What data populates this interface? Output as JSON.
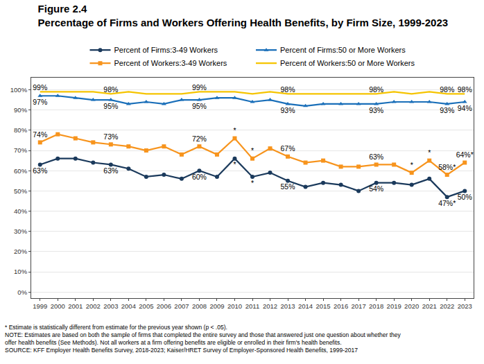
{
  "chart_data": {
    "type": "line",
    "title": "Figure 2.4",
    "subtitle": "Percentage of Firms and Workers Offering Health Benefits, by Firm Size, 1999-2023",
    "notes": [
      "* Estimate is statistically different from estimate for the previous year shown (p < .05).",
      "NOTE: Estimates are based on both the sample of firms that completed the entire survey and those that answered just one question about whether they",
      "offer health benefits (See Methods). Not all workers at a firm offering benefits are eligible or enrolled in their firm's health benefits.",
      "SOURCE: KFF Employer Health Benefits Survey, 2018-2023; Kaiser/HRET Survey of Employer-Sponsored Health Benefits, 1999-2017"
    ],
    "categories": [
      "1999",
      "2000",
      "2001",
      "2002",
      "2003",
      "2004",
      "2005",
      "2006",
      "2007",
      "2008",
      "2009",
      "2010",
      "2011",
      "2012",
      "2013",
      "2014",
      "2015",
      "2016",
      "2017",
      "2018",
      "2019",
      "2020",
      "2021",
      "2022",
      "2023"
    ],
    "ylim": [
      -3,
      106
    ],
    "yticks": [
      {
        "value": 0,
        "label": "0%"
      },
      {
        "value": 10,
        "label": "10%"
      },
      {
        "value": 20,
        "label": "20%"
      },
      {
        "value": 30,
        "label": "30%"
      },
      {
        "value": 40,
        "label": "40%"
      },
      {
        "value": 50,
        "label": "50%"
      },
      {
        "value": 60,
        "label": "60%"
      },
      {
        "value": 70,
        "label": "70%"
      },
      {
        "value": 80,
        "label": "80%"
      },
      {
        "value": 90,
        "label": "90%"
      },
      {
        "value": 100,
        "label": "100%"
      }
    ],
    "grid": true,
    "legend": "top",
    "data_labels": true,
    "series": [
      {
        "name": "Percent of Firms:3-49 Workers",
        "color": "#1b3a5c",
        "marker": "circle",
        "values": [
          63,
          66,
          66,
          64,
          63,
          61,
          57,
          58,
          56,
          60,
          57,
          66,
          57,
          59,
          55,
          52,
          54,
          53,
          50,
          54,
          54,
          53,
          56,
          47,
          50
        ],
        "value_labels": [
          "63%",
          null,
          null,
          null,
          "63%",
          null,
          null,
          null,
          null,
          "60%",
          null,
          "*",
          "*",
          null,
          "55%",
          null,
          null,
          null,
          null,
          "54%",
          null,
          null,
          null,
          "47%*",
          "50%"
        ]
      },
      {
        "name": "Percent of Firms:50 or More Workers",
        "color": "#1a6fb9",
        "marker": "triangle-up",
        "values": [
          97,
          97,
          96,
          95,
          95,
          93,
          94,
          93,
          95,
          95,
          96,
          96,
          94,
          95,
          93,
          92,
          93,
          93,
          93,
          93,
          94,
          94,
          94,
          93,
          94
        ],
        "value_labels": [
          "97%",
          null,
          null,
          null,
          "95%",
          null,
          null,
          null,
          null,
          "95%",
          null,
          null,
          null,
          null,
          "93%",
          null,
          null,
          null,
          null,
          "93%",
          null,
          null,
          null,
          "93%",
          "94%"
        ]
      },
      {
        "name": "Percent of Workers:3-49 Workers",
        "color": "#f7941d",
        "marker": "square",
        "values": [
          74,
          78,
          76,
          74,
          73,
          72,
          70,
          72,
          68,
          72,
          68,
          76,
          66,
          71,
          67,
          64,
          65,
          62,
          62,
          63,
          63,
          59,
          65,
          58,
          64
        ],
        "value_labels": [
          "74%",
          null,
          null,
          null,
          "73%",
          null,
          null,
          null,
          null,
          "72%",
          null,
          "*",
          "*",
          null,
          "67%",
          null,
          null,
          null,
          null,
          "63%",
          null,
          "*",
          "*",
          "58%*",
          "64%*"
        ]
      },
      {
        "name": "Percent of Workers:50 or More Workers",
        "color": "#f5c400",
        "marker": "none",
        "values": [
          99,
          99,
          99,
          99,
          98,
          99,
          98,
          98,
          98,
          99,
          99,
          99,
          98,
          99,
          98,
          98,
          98,
          98,
          98,
          98,
          99,
          98,
          99,
          98,
          98
        ],
        "value_labels": [
          "99%",
          null,
          null,
          null,
          "98%",
          null,
          null,
          null,
          null,
          "99%",
          null,
          null,
          null,
          null,
          "98%",
          null,
          null,
          null,
          null,
          "98%",
          null,
          null,
          null,
          "98%",
          "98%"
        ]
      }
    ]
  }
}
